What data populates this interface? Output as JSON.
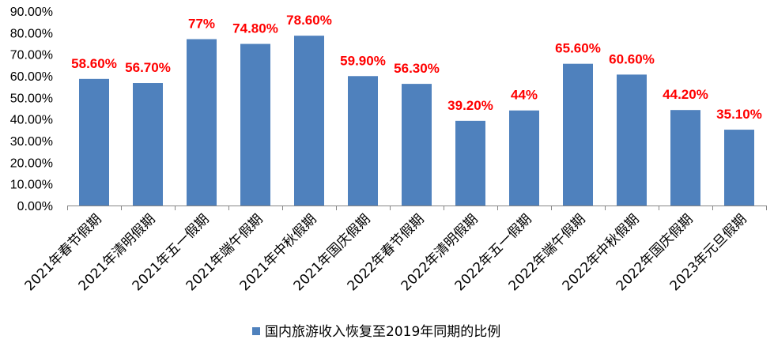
{
  "chart_data": {
    "type": "bar",
    "categories": [
      "2021年春节假期",
      "2021年清明假期",
      "2021年五一假期",
      "2021年端午假期",
      "2021年中秋假期",
      "2021年国庆假期",
      "2022年春节假期",
      "2022年清明假期",
      "2022年五一假期",
      "2022年端午假期",
      "2022年中秋假期",
      "2022年国庆假期",
      "2023年元旦假期"
    ],
    "values": [
      58.6,
      56.7,
      77,
      74.8,
      78.6,
      59.9,
      56.3,
      39.2,
      44,
      65.6,
      60.6,
      44.2,
      35.1
    ],
    "data_labels": [
      "58.60%",
      "56.70%",
      "77%",
      "74.80%",
      "78.60%",
      "59.90%",
      "56.30%",
      "39.20%",
      "44%",
      "65.60%",
      "60.60%",
      "44.20%",
      "35.10%"
    ],
    "y_ticks": [
      "0.00%",
      "10.00%",
      "20.00%",
      "30.00%",
      "40.00%",
      "50.00%",
      "60.00%",
      "70.00%",
      "80.00%",
      "90.00%"
    ],
    "ylim": [
      0,
      90
    ],
    "series": [
      {
        "name": "国内旅游收入恢复至2019年同期的比例",
        "color": "#4f81bd"
      }
    ],
    "label_color": "#ff0000",
    "grid": false,
    "legend_position": "bottom-center"
  }
}
